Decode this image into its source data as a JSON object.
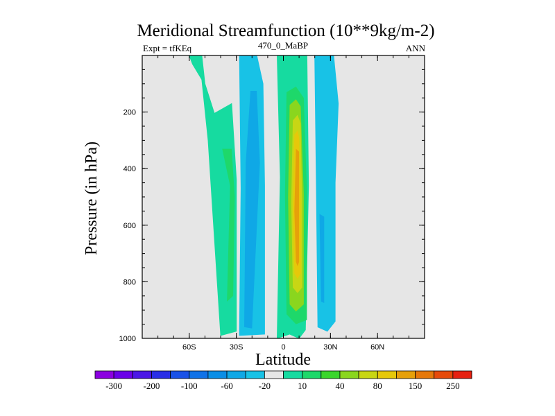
{
  "chart_data": {
    "type": "heatmap",
    "title": "Meridional Streamfunction (10**9kg/m-2)",
    "subtitle_left": "Expt = tfKEq",
    "subtitle_center": "470_0_MaBP",
    "subtitle_right": "ANN",
    "xlabel": "Latitude",
    "ylabel": "Pressure (in hPa)",
    "xlim": [
      -90,
      90
    ],
    "ylim": [
      1000,
      0
    ],
    "x_ticks": [
      "60S",
      "30S",
      "0",
      "30N",
      "60N"
    ],
    "x_tick_values": [
      -60,
      -30,
      0,
      30,
      60
    ],
    "y_ticks": [
      "200",
      "400",
      "600",
      "800",
      "1000"
    ],
    "y_tick_values": [
      200,
      400,
      600,
      800,
      1000
    ],
    "background": "#e6e6e6",
    "colorbar": {
      "labels": [
        "-300",
        "-200",
        "-100",
        "-60",
        "-20",
        "10",
        "40",
        "80",
        "150",
        "250"
      ],
      "colors": [
        "#8b00e0",
        "#6a00e8",
        "#4b16e6",
        "#2a2ee6",
        "#1a52e8",
        "#0f72e8",
        "#0a8ee6",
        "#0fa8e6",
        "#18c2e6",
        "#e6e6e6",
        "#16dba0",
        "#1ed86a",
        "#3ad62c",
        "#8ad61e",
        "#c8d614",
        "#e6c80a",
        "#e6a00a",
        "#e6780a",
        "#e64a0a",
        "#e62010"
      ]
    },
    "regions": [
      {
        "name": "southern-polar-cell",
        "sign": "positive",
        "color": "#16dba0",
        "polygon": [
          [
            -58,
            30
          ],
          [
            -52,
            85
          ],
          [
            -48,
            300
          ],
          [
            -40,
            990
          ],
          [
            -30,
            975
          ],
          [
            -30,
            440
          ],
          [
            -33,
            170
          ],
          [
            -44,
            205
          ],
          [
            -50,
            100
          ],
          [
            -52,
            0
          ],
          [
            -60,
            0
          ]
        ],
        "core": {
          "color": "#1ed86a",
          "polygon": [
            [
              -39,
              330
            ],
            [
              -34,
              460
            ],
            [
              -36,
              870
            ],
            [
              -32,
              850
            ],
            [
              -31,
              500
            ],
            [
              -33,
              330
            ]
          ]
        }
      },
      {
        "name": "southern-ferrel-cell",
        "sign": "negative",
        "color": "#18c2e6",
        "polygon": [
          [
            -28,
            0
          ],
          [
            -27,
            470
          ],
          [
            -28,
            990
          ],
          [
            -12,
            985
          ],
          [
            -12,
            460
          ],
          [
            -13,
            100
          ],
          [
            -17,
            0
          ]
        ],
        "core": {
          "color": "#0fa8e6",
          "polygon": [
            [
              -21,
              125
            ],
            [
              -24,
              380
            ],
            [
              -25,
              960
            ],
            [
              -20,
              965
            ],
            [
              -15,
              380
            ],
            [
              -17,
              125
            ]
          ]
        }
      },
      {
        "name": "hadley-cell",
        "sign": "positive",
        "color": "#16dba0",
        "polygon": [
          [
            -4,
            0
          ],
          [
            -2,
            430
          ],
          [
            -4,
            1000
          ],
          [
            4,
            985
          ],
          [
            10,
            1000
          ],
          [
            14,
            970
          ],
          [
            16,
            460
          ],
          [
            15,
            0
          ]
        ],
        "layers": [
          {
            "color": "#1ed86a",
            "polygon": [
              [
                2,
                130
              ],
              [
                1,
                490
              ],
              [
                2,
                915
              ],
              [
                8,
                950
              ],
              [
                15,
                935
              ],
              [
                15,
                480
              ],
              [
                13,
                150
              ],
              [
                8,
                110
              ]
            ]
          },
          {
            "color": "#8ad61e",
            "polygon": [
              [
                4,
                175
              ],
              [
                3,
                500
              ],
              [
                4,
                880
              ],
              [
                8,
                905
              ],
              [
                13,
                880
              ],
              [
                13,
                490
              ],
              [
                11,
                180
              ],
              [
                8,
                155
              ]
            ]
          },
          {
            "color": "#c8d614",
            "polygon": [
              [
                6,
                230
              ],
              [
                5,
                520
              ],
              [
                6,
                820
              ],
              [
                9,
                840
              ],
              [
                12,
                820
              ],
              [
                12,
                520
              ],
              [
                11,
                240
              ],
              [
                9,
                210
              ]
            ]
          },
          {
            "color": "#e6c80a",
            "polygon": [
              [
                7,
                280
              ],
              [
                6,
                540
              ],
              [
                7,
                770
              ],
              [
                9,
                790
              ],
              [
                11,
                770
              ],
              [
                11,
                540
              ],
              [
                10,
                290
              ],
              [
                9,
                265
              ]
            ]
          },
          {
            "color": "#e6a00a",
            "polygon": [
              [
                8,
                330
              ],
              [
                7,
                550
              ],
              [
                8,
                730
              ],
              [
                9,
                745
              ],
              [
                10,
                730
              ],
              [
                10,
                550
              ],
              [
                10,
                340
              ]
            ]
          }
        ]
      },
      {
        "name": "northern-ferrel-cell",
        "sign": "negative",
        "color": "#18c2e6",
        "polygon": [
          [
            20,
            0
          ],
          [
            21,
            460
          ],
          [
            22,
            960
          ],
          [
            28,
            975
          ],
          [
            33,
            940
          ],
          [
            33,
            450
          ],
          [
            35,
            170
          ],
          [
            32,
            0
          ]
        ],
        "core": {
          "color": "#0fa8e6",
          "polygon": [
            [
              23,
              560
            ],
            [
              24,
              870
            ],
            [
              26,
              875
            ],
            [
              26,
              570
            ]
          ]
        }
      }
    ]
  }
}
